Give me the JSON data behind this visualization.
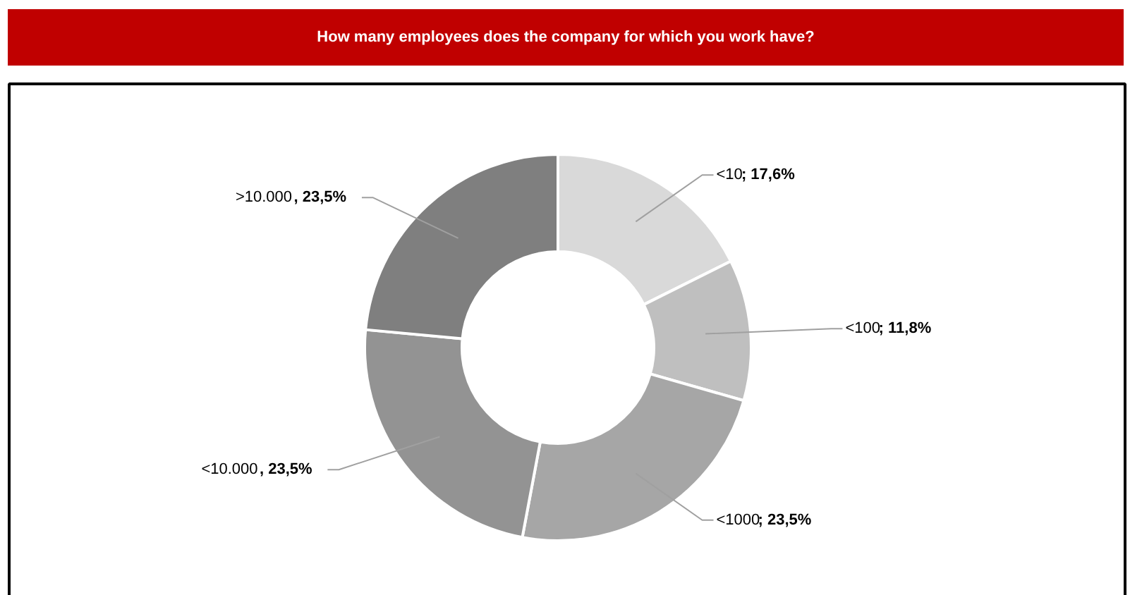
{
  "chart_data": {
    "type": "donut",
    "title": "How many employees does the company for which you work have?",
    "categories": [
      "<10",
      "<100",
      "<1000",
      "<10.000",
      ">10.000"
    ],
    "values": [
      17.6,
      11.8,
      23.5,
      23.5,
      23.5
    ],
    "value_labels": [
      "; 17,6%",
      "; 11,8%",
      "; 23,5%",
      ", 23,5%",
      ", 23,5%"
    ],
    "colors": [
      "#d9d9d9",
      "#bfbfbf",
      "#a6a6a6",
      "#939393",
      "#7f7f7f"
    ]
  }
}
